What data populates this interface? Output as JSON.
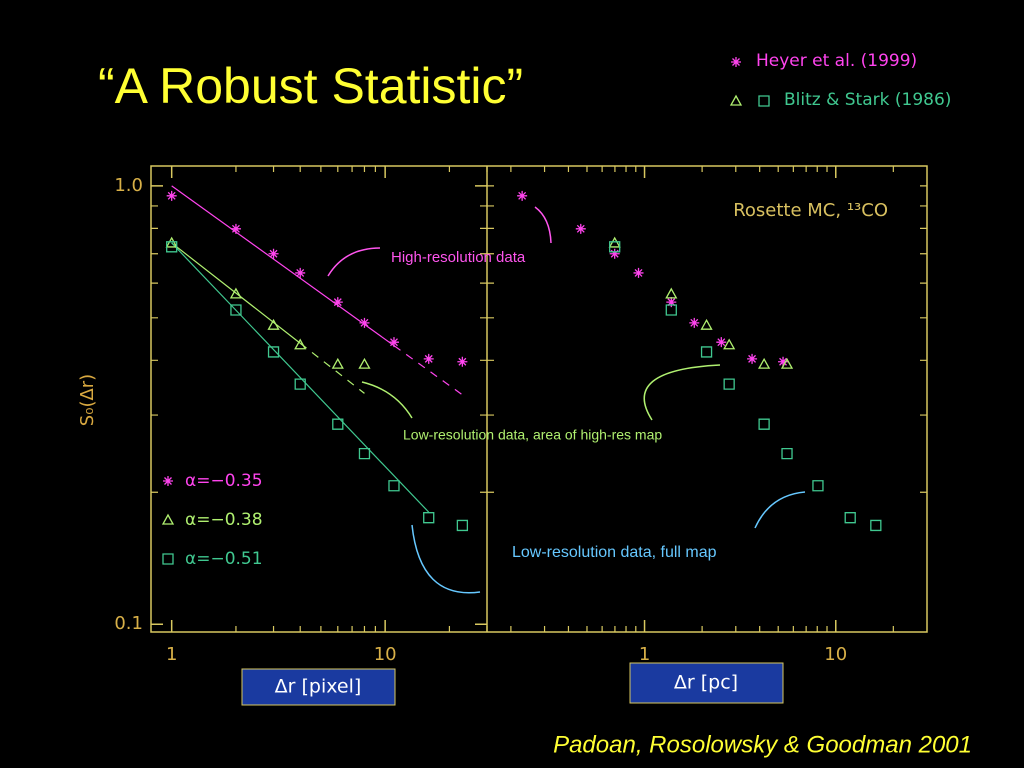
{
  "title": "“A Robust Statistic”",
  "citation": "Padoan, Rosolowsky & Goodman 2001",
  "annotations": [
    {
      "text": "High-resolution data",
      "color": "#ff55ee"
    },
    {
      "text": "Low-resolution data, area of high-res map",
      "color": "#b0f070"
    },
    {
      "text": "Low-resolution data, full map",
      "color": "#66c8ff"
    },
    {
      "text": "Rosette MC, ¹³CO",
      "color": "#d8c060"
    }
  ],
  "chart_data": [
    {
      "type": "scatter",
      "log_x": true,
      "log_y": true,
      "xlabel": "Δr [pixel]",
      "ylabel": "S₀(Δr)",
      "xlim": [
        0.8,
        30
      ],
      "ylim": [
        0.096,
        1.11
      ],
      "xticks": [
        1,
        10
      ],
      "xminor": [
        2,
        3,
        4,
        5,
        6,
        7,
        8,
        9,
        20,
        30
      ],
      "yticks": [
        {
          "value": 1,
          "label": "1.0"
        },
        0.1
      ],
      "yminor": [
        0.2,
        0.3,
        0.4,
        0.5,
        0.6,
        0.7,
        0.8,
        0.9
      ],
      "series": [
        {
          "name": "Heyer et al. (1999)",
          "color": "#ff44ee",
          "marker": "star",
          "x": [
            1,
            2,
            3,
            4,
            6,
            8,
            11,
            16,
            23
          ],
          "values": [
            0.949,
            0.798,
            0.7,
            0.633,
            0.543,
            0.487,
            0.44,
            0.403,
            0.397
          ]
        },
        {
          "name": "Blitz & Stark (1986)",
          "color": "#b0f070",
          "marker": "triangle",
          "x": [
            1,
            2,
            3,
            4,
            6,
            8
          ],
          "values": [
            0.741,
            0.567,
            0.481,
            0.434,
            0.392,
            0.392
          ]
        },
        {
          "color": "#40c890",
          "marker": "square",
          "x": [
            1,
            2,
            3,
            4,
            6,
            8,
            11,
            16,
            23
          ],
          "values": [
            0.726,
            0.521,
            0.418,
            0.353,
            0.286,
            0.245,
            0.207,
            0.175,
            0.168
          ]
        }
      ],
      "fits": [
        {
          "label": "α=−0.35",
          "color": "#ff44ee",
          "marker": "star",
          "slope": -0.35,
          "amplitude": 1.0,
          "solid": [
            1,
            11
          ],
          "dashed": [
            11,
            23
          ]
        },
        {
          "label": "α=−0.38",
          "color": "#b0f070",
          "marker": "triangle",
          "slope": -0.38,
          "amplitude": 0.741,
          "solid": [
            1,
            4
          ],
          "dashed": [
            4,
            8
          ]
        },
        {
          "label": "α=−0.51",
          "color": "#40c890",
          "marker": "square",
          "slope": -0.51,
          "amplitude": 0.741,
          "solid": [
            1,
            16
          ]
        }
      ]
    },
    {
      "type": "scatter",
      "log_x": true,
      "log_y": true,
      "xlabel": "Δr [pc]",
      "xlim": [
        0.15,
        30
      ],
      "ylim": [
        0.096,
        1.11
      ],
      "xticks": [
        1,
        10
      ],
      "xminor": [
        0.2,
        0.3,
        0.4,
        0.5,
        0.6,
        0.7,
        0.8,
        0.9,
        2,
        3,
        4,
        5,
        6,
        7,
        8,
        9,
        20
      ],
      "yminor": [
        0.2,
        0.3,
        0.4,
        0.5,
        0.6,
        0.7,
        0.8,
        0.9,
        1
      ],
      "series": [
        {
          "color": "#ff44ee",
          "marker": "star",
          "x": [
            0.229,
            0.464,
            0.698,
            0.93,
            1.38,
            1.82,
            2.52,
            3.65,
            5.3
          ],
          "values": [
            0.949,
            0.798,
            0.7,
            0.633,
            0.543,
            0.487,
            0.44,
            0.403,
            0.397
          ]
        },
        {
          "color": "#b0f070",
          "marker": "triangle",
          "x": [
            0.698,
            1.38,
            2.11,
            2.77,
            4.22,
            5.56
          ],
          "values": [
            0.741,
            0.567,
            0.481,
            0.434,
            0.392,
            0.392
          ]
        },
        {
          "color": "#40c890",
          "marker": "square",
          "x": [
            0.698,
            1.38,
            2.11,
            2.77,
            4.22,
            5.56,
            8.07,
            11.9,
            16.2
          ],
          "values": [
            0.726,
            0.521,
            0.418,
            0.353,
            0.286,
            0.245,
            0.207,
            0.175,
            0.168
          ]
        }
      ]
    }
  ]
}
